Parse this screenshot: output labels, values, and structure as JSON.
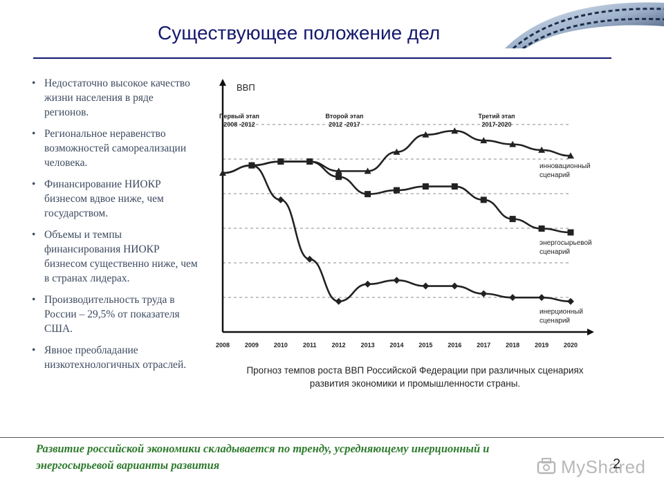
{
  "slide": {
    "title": "Существующее положение дел",
    "page_number": "2"
  },
  "bullets": [
    "Недостаточно высокое качество жизни населения в ряде регионов.",
    "Региональное неравенство возможностей самореализации человека.",
    "Финансирование НИОКР бизнесом вдвое ниже, чем государством.",
    "Объемы и темпы финансирования НИОКР бизнесом существенно ниже, чем в странах лидерах.",
    "Производительность труда в России – 29,5% от показателя США.",
    "Явное преобладание низкотехнологичных отраслей."
  ],
  "chart_data": {
    "type": "line",
    "ylabel": "ВВП",
    "x": [
      "2008",
      "2009",
      "2010",
      "2011",
      "2012",
      "2013",
      "2014",
      "2015",
      "2016",
      "2017",
      "2018",
      "2019",
      "2020"
    ],
    "stages": [
      {
        "name": "Первый этап",
        "period": "2008 -2012"
      },
      {
        "name": "Второй этап",
        "period": "2012 -2017"
      },
      {
        "name": "Третий этап",
        "period": "2017-2020"
      }
    ],
    "series": [
      {
        "name": "инновационный сценарий",
        "marker": "triangle",
        "values": [
          8.3,
          8.7,
          8.9,
          8.9,
          8.4,
          8.4,
          9.4,
          10.3,
          10.5,
          10.0,
          9.8,
          9.5,
          9.2
        ]
      },
      {
        "name": "энергосырьевой сценарий",
        "marker": "square",
        "values": [
          8.3,
          8.7,
          8.9,
          8.9,
          8.1,
          7.2,
          7.4,
          7.6,
          7.6,
          6.9,
          5.9,
          5.4,
          5.2
        ]
      },
      {
        "name": "инерционный сценарий",
        "marker": "diamond",
        "values": [
          8.3,
          8.7,
          6.9,
          3.8,
          1.6,
          2.5,
          2.7,
          2.4,
          2.4,
          2.0,
          1.8,
          1.8,
          1.6
        ]
      }
    ],
    "ylim": [
      0,
      13
    ],
    "grid": true,
    "legend": "inline-right",
    "colors": {
      "line": "#222222",
      "grid": "#888888",
      "axis": "#111111"
    }
  },
  "caption": "Прогноз темпов роста ВВП Российской Федерации при различных сценариях развития экономики и промышленности страны.",
  "conclusion": "Развитие российской экономики складывается по тренду, усредняющему инерционный и энергосырьевой варианты развития",
  "watermark": {
    "text": "MyShared"
  }
}
